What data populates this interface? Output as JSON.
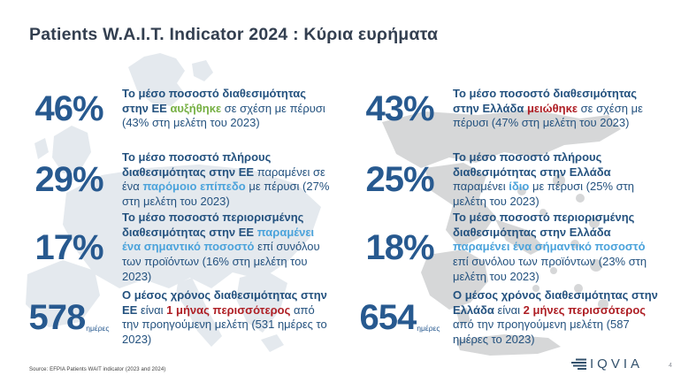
{
  "slide": {
    "title": "Patients W.A.I.T. Indicator 2024 : Κύρια ευρήματα",
    "source": "Source: EFPIA Patients WAIT indicator (2023 and 2024)",
    "logo_text": "IQVIA",
    "page_number": "4"
  },
  "colors": {
    "title": "#333F50",
    "stat_navy": "#27598F",
    "body_navy": "#24527F",
    "highlight_green": "#76B043",
    "highlight_light_blue": "#4BA3DB",
    "highlight_red": "#AE1E24",
    "logo_navy": "#33516C",
    "europe_watermark": "#E4E9EE",
    "greece_watermark": "#D6D7D8"
  },
  "columns": [
    {
      "id": "eu",
      "rows": [
        {
          "stat": "46%",
          "unit": "",
          "segments": [
            {
              "t": "Το μέσο ποσοστό διαθεσιμότητας στην ΕΕ ",
              "s": "bold"
            },
            {
              "t": "αυξήθηκε",
              "s": "green"
            },
            {
              "t": " σε σχέση με πέρυσι (43% στη μελέτη του 2023)",
              "s": "regular"
            }
          ]
        },
        {
          "stat": "29%",
          "unit": "",
          "segments": [
            {
              "t": "Το μέσο ποσοστό πλήρους διαθεσιμότητας στην ΕΕ ",
              "s": "bold"
            },
            {
              "t": "παραμένει σε ένα ",
              "s": "regular"
            },
            {
              "t": "παρόμοιο επίπεδο",
              "s": "blue"
            },
            {
              "t": " με πέρυσι (27% στη μελέτη του 2023)",
              "s": "regular"
            }
          ]
        },
        {
          "stat": "17%",
          "unit": "",
          "segments": [
            {
              "t": "Το μέσο ποσοστό περιορισμένης διαθεσιμότητας στην ΕΕ ",
              "s": "bold"
            },
            {
              "t": "παραμένει ένα σημαντικό ποσοστό",
              "s": "blue"
            },
            {
              "t": " επί συνόλου των προϊόντων (16% στη μελέτη του 2023)",
              "s": "regular"
            }
          ]
        },
        {
          "stat": "578",
          "unit": "ημέρες",
          "segments": [
            {
              "t": "Ο μέσος χρόνος διαθεσιμότητας στην ΕΕ ",
              "s": "bold"
            },
            {
              "t": "είναι ",
              "s": "regular"
            },
            {
              "t": "1 μήνας περισσότερος",
              "s": "red"
            },
            {
              "t": " από την προηγούμενη μελέτη (531 ημέρες το 2023)",
              "s": "regular"
            }
          ]
        }
      ]
    },
    {
      "id": "greece",
      "rows": [
        {
          "stat": "43%",
          "unit": "",
          "segments": [
            {
              "t": "Το μέσο ποσοστό διαθεσιμότητας στην Ελλάδα ",
              "s": "bold"
            },
            {
              "t": "μειώθηκε",
              "s": "red"
            },
            {
              "t": " σε σχέση με πέρυσι (47% στη μελέτη του 2023)",
              "s": "regular"
            }
          ]
        },
        {
          "stat": "25%",
          "unit": "",
          "segments": [
            {
              "t": "Το μέσο ποσοστό πλήρους διαθεσιμότητας στην Ελλάδα ",
              "s": "bold"
            },
            {
              "t": "παραμένει ",
              "s": "regular"
            },
            {
              "t": "ίδιο",
              "s": "blue"
            },
            {
              "t": " με πέρυσι (25% στη μελέτη του 2023)",
              "s": "regular"
            }
          ]
        },
        {
          "stat": "18%",
          "unit": "",
          "segments": [
            {
              "t": "Το μέσο ποσοστό περιορισμένης διαθεσιμότητας στην Ελλάδα ",
              "s": "bold"
            },
            {
              "t": "παραμένει ένα σήμαντικό ποσοστό",
              "s": "blue"
            },
            {
              "t": " επί συνόλου των προϊόντων (23% στη μελέτη του 2023)",
              "s": "regular"
            }
          ]
        },
        {
          "stat": "654",
          "unit": "ημέρες",
          "segments": [
            {
              "t": "Ο μέσος χρόνος διαθεσιμότητας στην Ελλάδα ",
              "s": "bold"
            },
            {
              "t": "είναι ",
              "s": "regular"
            },
            {
              "t": "2 μήνες περισσότερος",
              "s": "red"
            },
            {
              "t": " από την προηγούμενη μελέτη (587 ημέρες το 2023)",
              "s": "regular"
            }
          ]
        }
      ]
    }
  ]
}
